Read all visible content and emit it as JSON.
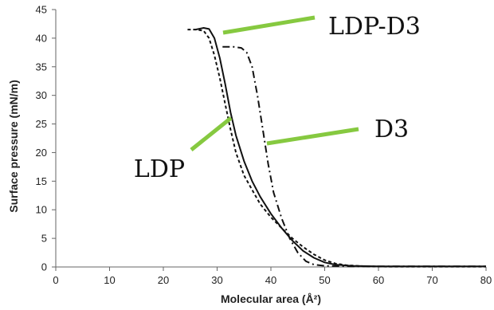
{
  "chart_data": {
    "type": "line",
    "xlabel": "Molecular area (Å²)",
    "ylabel": "Surface pressure (mN/m)",
    "xlim": [
      0,
      80
    ],
    "ylim": [
      0,
      45
    ],
    "xticks": [
      0,
      10,
      20,
      30,
      40,
      50,
      60,
      70,
      80
    ],
    "yticks": [
      0,
      5,
      10,
      15,
      20,
      25,
      30,
      35,
      40,
      45
    ],
    "grid": false,
    "legend": "none",
    "series": [
      {
        "name": "LDP",
        "style": "dashed",
        "color": "#111111",
        "points": [
          [
            24.5,
            41.5
          ],
          [
            26,
            41.5
          ],
          [
            27.5,
            41.3
          ],
          [
            28.5,
            40
          ],
          [
            29.5,
            37
          ],
          [
            30.5,
            33
          ],
          [
            31.5,
            28.5
          ],
          [
            32.5,
            24
          ],
          [
            33.5,
            20
          ],
          [
            35,
            16
          ],
          [
            36.5,
            13.5
          ],
          [
            38,
            11
          ],
          [
            40,
            8.7
          ],
          [
            42,
            6.8
          ],
          [
            44,
            5
          ],
          [
            46,
            3.5
          ],
          [
            48,
            2.2
          ],
          [
            50,
            1.2
          ],
          [
            52,
            0.6
          ],
          [
            54,
            0.3
          ],
          [
            58,
            0.1
          ],
          [
            62,
            0.05
          ],
          [
            80,
            0.05
          ]
        ]
      },
      {
        "name": "LDP-D3",
        "style": "solid",
        "color": "#111111",
        "points": [
          [
            26,
            41.5
          ],
          [
            27.5,
            41.8
          ],
          [
            28.5,
            41.6
          ],
          [
            29.5,
            40
          ],
          [
            30.5,
            36.5
          ],
          [
            31.5,
            32
          ],
          [
            32.5,
            27
          ],
          [
            33.5,
            23
          ],
          [
            35,
            18.5
          ],
          [
            36.5,
            15
          ],
          [
            38,
            12.3
          ],
          [
            40,
            9.3
          ],
          [
            42,
            6.8
          ],
          [
            44,
            4.6
          ],
          [
            46,
            2.8
          ],
          [
            48,
            1.6
          ],
          [
            50,
            0.8
          ],
          [
            52,
            0.4
          ],
          [
            55,
            0.2
          ],
          [
            60,
            0.1
          ],
          [
            80,
            0.1
          ]
        ]
      },
      {
        "name": "D3",
        "style": "dashdot",
        "color": "#111111",
        "points": [
          [
            31,
            38.5
          ],
          [
            33,
            38.5
          ],
          [
            34.5,
            38.3
          ],
          [
            35.5,
            37.5
          ],
          [
            36.5,
            35
          ],
          [
            37.5,
            30
          ],
          [
            38.5,
            24
          ],
          [
            39.5,
            18
          ],
          [
            40.5,
            13
          ],
          [
            42,
            8.5
          ],
          [
            43.5,
            5
          ],
          [
            45,
            2.5
          ],
          [
            46.5,
            1
          ],
          [
            48,
            0.4
          ],
          [
            50,
            0.2
          ],
          [
            55,
            0.1
          ],
          [
            60,
            0.1
          ],
          [
            80,
            0.1
          ]
        ]
      }
    ],
    "annotations": [
      {
        "text": "LDP-D3",
        "color": "#86c940"
      },
      {
        "text": "D3",
        "color": "#86c940"
      },
      {
        "text": "LDP",
        "color": "#86c940"
      }
    ]
  }
}
